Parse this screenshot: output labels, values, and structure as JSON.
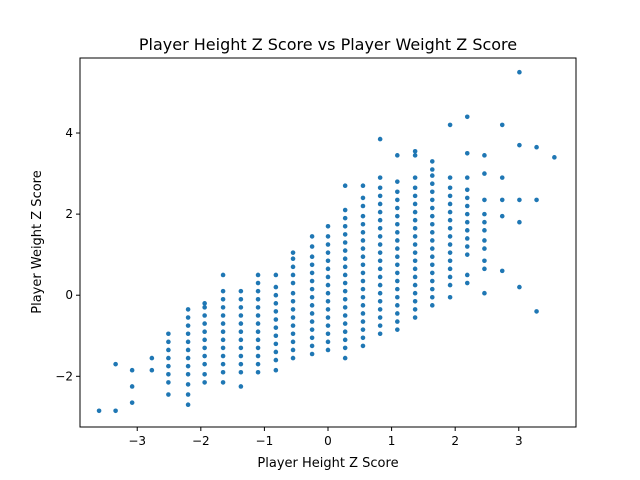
{
  "chart_data": {
    "type": "scatter",
    "title": "Player Height Z Score vs Player Weight Z Score",
    "xlabel": "Player Height Z Score",
    "ylabel": "Player Weight Z Score",
    "xlim": [
      -3.9,
      3.9
    ],
    "ylim": [
      -3.25,
      5.85
    ],
    "xticks": [
      -3,
      -2,
      -1,
      0,
      1,
      2,
      3
    ],
    "yticks": [
      -2,
      0,
      2,
      4
    ],
    "xtick_labels": [
      "−3",
      "−2",
      "−1",
      "0",
      "1",
      "2",
      "3"
    ],
    "ytick_labels": [
      "−2",
      "0",
      "2",
      "4"
    ],
    "grid": false,
    "marker_color": "#1f77b4",
    "series": [
      {
        "points": [
          [
            -3.6,
            -2.85
          ],
          [
            -3.34,
            -2.85
          ],
          [
            -3.34,
            -1.7
          ],
          [
            -3.08,
            -2.65
          ],
          [
            -3.08,
            -2.25
          ],
          [
            -3.08,
            -1.85
          ],
          [
            -2.77,
            -1.85
          ],
          [
            -2.77,
            -1.55
          ],
          [
            -2.51,
            -2.45
          ],
          [
            -2.51,
            -2.15
          ],
          [
            -2.51,
            -1.95
          ],
          [
            -2.51,
            -1.75
          ],
          [
            -2.51,
            -1.55
          ],
          [
            -2.51,
            -1.35
          ],
          [
            -2.51,
            -1.15
          ],
          [
            -2.51,
            -0.95
          ],
          [
            -2.2,
            -2.7
          ],
          [
            -2.2,
            -2.45
          ],
          [
            -2.2,
            -2.2
          ],
          [
            -2.2,
            -1.95
          ],
          [
            -2.2,
            -1.75
          ],
          [
            -2.2,
            -1.55
          ],
          [
            -2.2,
            -1.35
          ],
          [
            -2.2,
            -1.15
          ],
          [
            -2.2,
            -0.95
          ],
          [
            -2.2,
            -0.75
          ],
          [
            -2.2,
            -0.55
          ],
          [
            -2.2,
            -0.35
          ],
          [
            -1.94,
            -2.15
          ],
          [
            -1.94,
            -1.95
          ],
          [
            -1.94,
            -1.7
          ],
          [
            -1.94,
            -1.5
          ],
          [
            -1.94,
            -1.3
          ],
          [
            -1.94,
            -1.1
          ],
          [
            -1.94,
            -0.9
          ],
          [
            -1.94,
            -0.7
          ],
          [
            -1.94,
            -0.5
          ],
          [
            -1.94,
            -0.3
          ],
          [
            -1.94,
            -0.2
          ],
          [
            -1.65,
            -2.15
          ],
          [
            -1.65,
            -1.9
          ],
          [
            -1.65,
            -1.7
          ],
          [
            -1.65,
            -1.5
          ],
          [
            -1.65,
            -1.3
          ],
          [
            -1.65,
            -1.1
          ],
          [
            -1.65,
            -0.9
          ],
          [
            -1.65,
            -0.7
          ],
          [
            -1.65,
            -0.5
          ],
          [
            -1.65,
            -0.3
          ],
          [
            -1.65,
            -0.1
          ],
          [
            -1.65,
            0.1
          ],
          [
            -1.65,
            0.5
          ],
          [
            -1.37,
            -2.25
          ],
          [
            -1.37,
            -1.9
          ],
          [
            -1.37,
            -1.7
          ],
          [
            -1.37,
            -1.5
          ],
          [
            -1.37,
            -1.3
          ],
          [
            -1.37,
            -1.1
          ],
          [
            -1.37,
            -0.9
          ],
          [
            -1.37,
            -0.7
          ],
          [
            -1.37,
            -0.5
          ],
          [
            -1.37,
            -0.3
          ],
          [
            -1.37,
            -0.1
          ],
          [
            -1.37,
            0.1
          ],
          [
            -1.1,
            -1.9
          ],
          [
            -1.1,
            -1.7
          ],
          [
            -1.1,
            -1.5
          ],
          [
            -1.1,
            -1.3
          ],
          [
            -1.1,
            -1.1
          ],
          [
            -1.1,
            -0.9
          ],
          [
            -1.1,
            -0.7
          ],
          [
            -1.1,
            -0.5
          ],
          [
            -1.1,
            -0.3
          ],
          [
            -1.1,
            -0.1
          ],
          [
            -1.1,
            0.1
          ],
          [
            -1.1,
            0.3
          ],
          [
            -1.1,
            0.5
          ],
          [
            -0.82,
            -1.85
          ],
          [
            -0.82,
            -1.6
          ],
          [
            -0.82,
            -1.4
          ],
          [
            -0.82,
            -1.2
          ],
          [
            -0.82,
            -1.0
          ],
          [
            -0.82,
            -0.8
          ],
          [
            -0.82,
            -0.6
          ],
          [
            -0.82,
            -0.4
          ],
          [
            -0.82,
            -0.2
          ],
          [
            -0.82,
            0.0
          ],
          [
            -0.82,
            0.2
          ],
          [
            -0.82,
            0.5
          ],
          [
            -0.55,
            -1.55
          ],
          [
            -0.55,
            -1.35
          ],
          [
            -0.55,
            -1.15
          ],
          [
            -0.55,
            -0.95
          ],
          [
            -0.55,
            -0.75
          ],
          [
            -0.55,
            -0.55
          ],
          [
            -0.55,
            -0.35
          ],
          [
            -0.55,
            -0.15
          ],
          [
            -0.55,
            0.05
          ],
          [
            -0.55,
            0.3
          ],
          [
            -0.55,
            0.5
          ],
          [
            -0.55,
            0.7
          ],
          [
            -0.55,
            0.9
          ],
          [
            -0.55,
            1.05
          ],
          [
            -0.25,
            -1.45
          ],
          [
            -0.25,
            -1.25
          ],
          [
            -0.25,
            -1.05
          ],
          [
            -0.25,
            -0.85
          ],
          [
            -0.25,
            -0.65
          ],
          [
            -0.25,
            -0.45
          ],
          [
            -0.25,
            -0.25
          ],
          [
            -0.25,
            -0.05
          ],
          [
            -0.25,
            0.15
          ],
          [
            -0.25,
            0.35
          ],
          [
            -0.25,
            0.55
          ],
          [
            -0.25,
            0.75
          ],
          [
            -0.25,
            0.95
          ],
          [
            -0.25,
            1.2
          ],
          [
            -0.25,
            1.45
          ],
          [
            0.0,
            -1.35
          ],
          [
            0.0,
            -1.15
          ],
          [
            0.0,
            -0.95
          ],
          [
            0.0,
            -0.75
          ],
          [
            0.0,
            -0.55
          ],
          [
            0.0,
            -0.35
          ],
          [
            0.0,
            -0.15
          ],
          [
            0.0,
            0.05
          ],
          [
            0.0,
            0.25
          ],
          [
            0.0,
            0.45
          ],
          [
            0.0,
            0.65
          ],
          [
            0.0,
            0.85
          ],
          [
            0.0,
            1.05
          ],
          [
            0.0,
            1.25
          ],
          [
            0.0,
            1.45
          ],
          [
            0.0,
            1.7
          ],
          [
            0.27,
            -1.55
          ],
          [
            0.27,
            -1.3
          ],
          [
            0.27,
            -1.1
          ],
          [
            0.27,
            -0.9
          ],
          [
            0.27,
            -0.7
          ],
          [
            0.27,
            -0.5
          ],
          [
            0.27,
            -0.3
          ],
          [
            0.27,
            -0.1
          ],
          [
            0.27,
            0.1
          ],
          [
            0.27,
            0.3
          ],
          [
            0.27,
            0.5
          ],
          [
            0.27,
            0.7
          ],
          [
            0.27,
            0.9
          ],
          [
            0.27,
            1.1
          ],
          [
            0.27,
            1.3
          ],
          [
            0.27,
            1.5
          ],
          [
            0.27,
            1.7
          ],
          [
            0.27,
            1.9
          ],
          [
            0.27,
            2.1
          ],
          [
            0.27,
            2.7
          ],
          [
            0.55,
            -1.25
          ],
          [
            0.55,
            -1.05
          ],
          [
            0.55,
            -0.85
          ],
          [
            0.55,
            -0.65
          ],
          [
            0.55,
            -0.45
          ],
          [
            0.55,
            -0.25
          ],
          [
            0.55,
            -0.05
          ],
          [
            0.55,
            0.15
          ],
          [
            0.55,
            0.35
          ],
          [
            0.55,
            0.55
          ],
          [
            0.55,
            0.75
          ],
          [
            0.55,
            0.95
          ],
          [
            0.55,
            1.15
          ],
          [
            0.55,
            1.35
          ],
          [
            0.55,
            1.55
          ],
          [
            0.55,
            1.75
          ],
          [
            0.55,
            1.95
          ],
          [
            0.55,
            2.2
          ],
          [
            0.55,
            2.4
          ],
          [
            0.55,
            2.7
          ],
          [
            0.82,
            -0.95
          ],
          [
            0.82,
            -0.75
          ],
          [
            0.82,
            -0.55
          ],
          [
            0.82,
            -0.35
          ],
          [
            0.82,
            -0.15
          ],
          [
            0.82,
            0.05
          ],
          [
            0.82,
            0.25
          ],
          [
            0.82,
            0.45
          ],
          [
            0.82,
            0.65
          ],
          [
            0.82,
            0.85
          ],
          [
            0.82,
            1.05
          ],
          [
            0.82,
            1.25
          ],
          [
            0.82,
            1.45
          ],
          [
            0.82,
            1.65
          ],
          [
            0.82,
            1.85
          ],
          [
            0.82,
            2.05
          ],
          [
            0.82,
            2.25
          ],
          [
            0.82,
            2.45
          ],
          [
            0.82,
            2.65
          ],
          [
            0.82,
            2.9
          ],
          [
            0.82,
            3.85
          ],
          [
            1.09,
            -0.85
          ],
          [
            1.09,
            -0.65
          ],
          [
            1.09,
            -0.45
          ],
          [
            1.09,
            -0.25
          ],
          [
            1.09,
            -0.05
          ],
          [
            1.09,
            0.15
          ],
          [
            1.09,
            0.35
          ],
          [
            1.09,
            0.55
          ],
          [
            1.09,
            0.75
          ],
          [
            1.09,
            0.95
          ],
          [
            1.09,
            1.15
          ],
          [
            1.09,
            1.35
          ],
          [
            1.09,
            1.55
          ],
          [
            1.09,
            1.75
          ],
          [
            1.09,
            1.95
          ],
          [
            1.09,
            2.15
          ],
          [
            1.09,
            2.35
          ],
          [
            1.09,
            2.55
          ],
          [
            1.09,
            2.8
          ],
          [
            1.09,
            3.45
          ],
          [
            1.37,
            -0.55
          ],
          [
            1.37,
            -0.35
          ],
          [
            1.37,
            -0.15
          ],
          [
            1.37,
            0.05
          ],
          [
            1.37,
            0.25
          ],
          [
            1.37,
            0.45
          ],
          [
            1.37,
            0.65
          ],
          [
            1.37,
            0.85
          ],
          [
            1.37,
            1.05
          ],
          [
            1.37,
            1.25
          ],
          [
            1.37,
            1.45
          ],
          [
            1.37,
            1.65
          ],
          [
            1.37,
            1.85
          ],
          [
            1.37,
            2.05
          ],
          [
            1.37,
            2.25
          ],
          [
            1.37,
            2.45
          ],
          [
            1.37,
            2.65
          ],
          [
            1.37,
            2.9
          ],
          [
            1.37,
            3.45
          ],
          [
            1.37,
            3.55
          ],
          [
            1.64,
            -0.25
          ],
          [
            1.64,
            -0.05
          ],
          [
            1.64,
            0.15
          ],
          [
            1.64,
            0.35
          ],
          [
            1.64,
            0.55
          ],
          [
            1.64,
            0.75
          ],
          [
            1.64,
            0.95
          ],
          [
            1.64,
            1.15
          ],
          [
            1.64,
            1.35
          ],
          [
            1.64,
            1.55
          ],
          [
            1.64,
            1.75
          ],
          [
            1.64,
            1.95
          ],
          [
            1.64,
            2.15
          ],
          [
            1.64,
            2.35
          ],
          [
            1.64,
            2.55
          ],
          [
            1.64,
            2.75
          ],
          [
            1.64,
            2.95
          ],
          [
            1.64,
            3.1
          ],
          [
            1.64,
            3.3
          ],
          [
            1.92,
            -0.05
          ],
          [
            1.92,
            0.25
          ],
          [
            1.92,
            0.45
          ],
          [
            1.92,
            0.65
          ],
          [
            1.92,
            0.85
          ],
          [
            1.92,
            1.05
          ],
          [
            1.92,
            1.25
          ],
          [
            1.92,
            1.45
          ],
          [
            1.92,
            1.65
          ],
          [
            1.92,
            1.85
          ],
          [
            1.92,
            2.05
          ],
          [
            1.92,
            2.25
          ],
          [
            1.92,
            2.45
          ],
          [
            1.92,
            2.65
          ],
          [
            1.92,
            2.9
          ],
          [
            1.92,
            4.2
          ],
          [
            2.19,
            0.3
          ],
          [
            2.19,
            0.5
          ],
          [
            2.19,
            1.0
          ],
          [
            2.19,
            1.2
          ],
          [
            2.19,
            1.4
          ],
          [
            2.19,
            1.6
          ],
          [
            2.19,
            1.8
          ],
          [
            2.19,
            2.0
          ],
          [
            2.19,
            2.2
          ],
          [
            2.19,
            2.4
          ],
          [
            2.19,
            2.6
          ],
          [
            2.19,
            2.9
          ],
          [
            2.19,
            3.5
          ],
          [
            2.19,
            4.4
          ],
          [
            2.46,
            0.05
          ],
          [
            2.46,
            0.65
          ],
          [
            2.46,
            0.85
          ],
          [
            2.46,
            1.15
          ],
          [
            2.46,
            1.35
          ],
          [
            2.46,
            1.6
          ],
          [
            2.46,
            1.8
          ],
          [
            2.46,
            2.0
          ],
          [
            2.46,
            2.35
          ],
          [
            2.46,
            3.0
          ],
          [
            2.46,
            3.45
          ],
          [
            2.74,
            0.6
          ],
          [
            2.74,
            1.95
          ],
          [
            2.74,
            2.35
          ],
          [
            2.74,
            2.9
          ],
          [
            2.74,
            4.2
          ],
          [
            3.01,
            0.2
          ],
          [
            3.01,
            1.8
          ],
          [
            3.01,
            2.35
          ],
          [
            3.01,
            3.7
          ],
          [
            3.01,
            5.5
          ],
          [
            3.28,
            -0.4
          ],
          [
            3.28,
            2.35
          ],
          [
            3.28,
            3.65
          ],
          [
            3.56,
            3.4
          ]
        ]
      }
    ]
  }
}
